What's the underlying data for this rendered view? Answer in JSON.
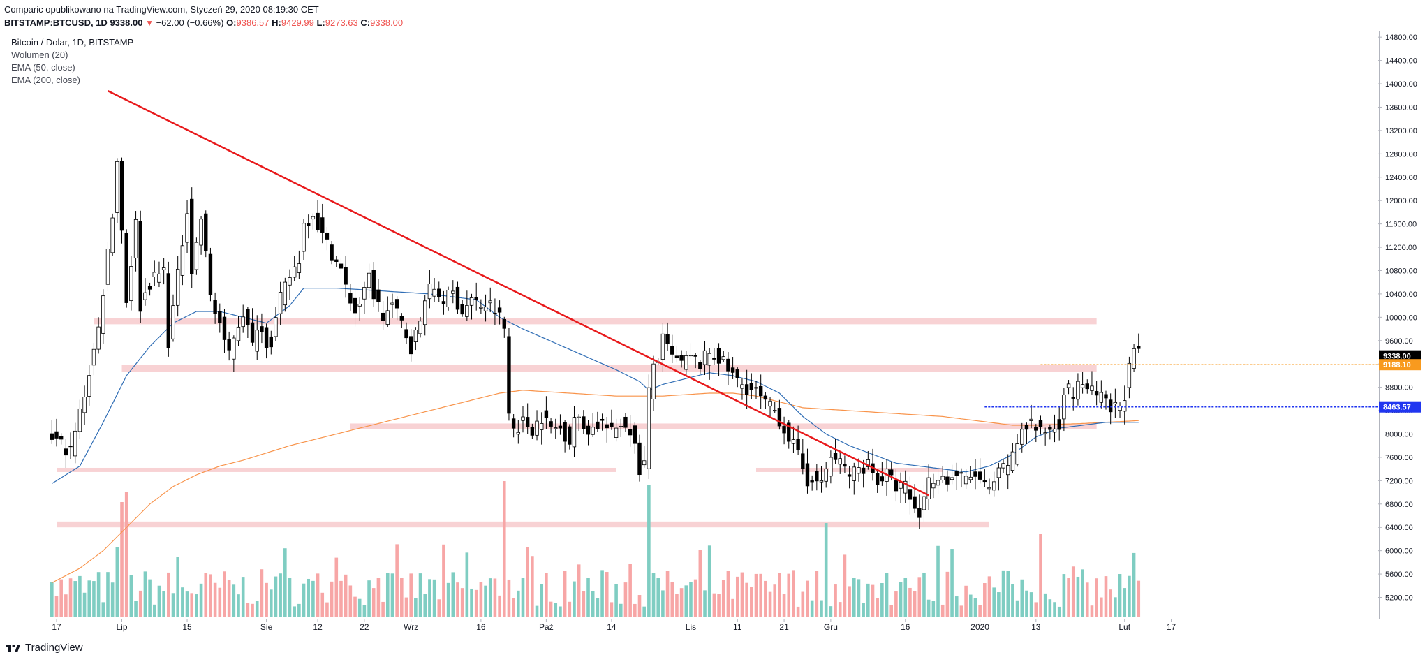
{
  "header": {
    "line1": "Comparic opublikowano na TradingView.com, Styczeń 29, 2020 08:19:30 CET",
    "symbol": "BITSTAMP:BTCUSD, 1D",
    "last": "9338.00",
    "change": "−62.00 (−0.66%)",
    "o_label": "O:",
    "o": "9386.57",
    "h_label": "H:",
    "h": "9429.99",
    "l_label": "L:",
    "l": "9273.63",
    "c_label": "C:",
    "c": "9338.00"
  },
  "legend": {
    "title": "Bitcoin / Dolar, 1D, BITSTAMP",
    "volume": "Wolumen (20)",
    "ema50": "EMA (50, close)",
    "ema200": "EMA (200, close)"
  },
  "brand": "TradingView",
  "colors": {
    "up": "#ffffff",
    "down": "#000000",
    "wick": "#000000",
    "vol_up": "#7fcdc2",
    "vol_down": "#f7a6a6",
    "ema50": "#2f6db5",
    "ema200": "#f8934a",
    "trendline": "#e8191b",
    "zone": "#f5c3c5",
    "price_last_bg": "#000000",
    "price_orange_bg": "#f89a1e",
    "price_blue_bg": "#2036f0"
  },
  "chart_data": {
    "type": "candlestick",
    "symbol": "BITSTAMP:BTCUSD",
    "interval": "1D",
    "y_ticks": [
      5200,
      5600,
      6000,
      6400,
      6800,
      7200,
      7600,
      8000,
      8400,
      8800,
      9200,
      9600,
      10000,
      10400,
      10800,
      11200,
      11600,
      12000,
      12400,
      12800,
      13200,
      13600,
      14000,
      14400,
      14800
    ],
    "y_tick_labels": [
      "5200.00",
      "5600.00",
      "6000.00",
      "6400.00",
      "6800.00",
      "7200.00",
      "7600.00",
      "8000.00",
      "8400.00",
      "8800.00",
      "9200.00",
      "9600.00",
      "10000.00",
      "10400.00",
      "10800.00",
      "11200.00",
      "11600.00",
      "12000.00",
      "12400.00",
      "12800.00",
      "13200.00",
      "13600.00",
      "14000.00",
      "14400.00",
      "14800.00"
    ],
    "x_ticks": [
      {
        "label": "17",
        "day": 0
      },
      {
        "label": "Lip",
        "day": 14
      },
      {
        "label": "15",
        "day": 28
      },
      {
        "label": "Sie",
        "day": 45
      },
      {
        "label": "12",
        "day": 56
      },
      {
        "label": "22",
        "day": 66
      },
      {
        "label": "Wrz",
        "day": 76
      },
      {
        "label": "16",
        "day": 91
      },
      {
        "label": "Paź",
        "day": 105
      },
      {
        "label": "14",
        "day": 119
      },
      {
        "label": "Lis",
        "day": 136
      },
      {
        "label": "11",
        "day": 146
      },
      {
        "label": "21",
        "day": 156
      },
      {
        "label": "Gru",
        "day": 166
      },
      {
        "label": "16",
        "day": 182
      },
      {
        "label": "2020",
        "day": 198
      },
      {
        "label": "13",
        "day": 210
      },
      {
        "label": "Lut",
        "day": 229
      },
      {
        "label": "17",
        "day": 239
      }
    ],
    "price_labels": [
      {
        "value": "9338.00",
        "price": 9338,
        "bg": "#000000"
      },
      {
        "value": "9188.10",
        "price": 9188,
        "bg": "#f89a1e"
      },
      {
        "value": "8463.57",
        "price": 8464,
        "bg": "#2036f0"
      }
    ],
    "zones": [
      {
        "low": 9880,
        "high": 9980,
        "from_day": 8,
        "to_day": 223
      },
      {
        "low": 9060,
        "high": 9180,
        "from_day": 14,
        "to_day": 223
      },
      {
        "low": 8080,
        "high": 8180,
        "from_day": 63,
        "to_day": 223
      },
      {
        "low": 7350,
        "high": 7420,
        "from_day": 0,
        "to_day": 120
      },
      {
        "low": 7350,
        "high": 7420,
        "from_day": 150,
        "to_day": 190
      },
      {
        "low": 6400,
        "high": 6500,
        "from_day": 0,
        "to_day": 200
      }
    ],
    "trendline": {
      "from": {
        "day": 11,
        "price": 13880
      },
      "to": {
        "day": 187,
        "price": 6950
      }
    },
    "hlines": [
      {
        "price": 9188,
        "from_day": 211,
        "to_day": 239,
        "color": "#f89a1e"
      },
      {
        "price": 8464,
        "from_day": 199,
        "to_day": 239,
        "color": "#2036f0"
      }
    ],
    "ohlc_anchors": [
      [
        -1,
        7950
      ],
      [
        3,
        7700
      ],
      [
        6,
        8700
      ],
      [
        9,
        9800
      ],
      [
        12,
        11800
      ],
      [
        13,
        12700
      ],
      [
        15,
        10300
      ],
      [
        17,
        11600
      ],
      [
        18,
        10200
      ],
      [
        20,
        10600
      ],
      [
        23,
        10800
      ],
      [
        24,
        9600
      ],
      [
        26,
        10700
      ],
      [
        28,
        11900
      ],
      [
        29,
        10800
      ],
      [
        31,
        11700
      ],
      [
        33,
        10400
      ],
      [
        34,
        10100
      ],
      [
        35,
        9900
      ],
      [
        36,
        9500
      ],
      [
        37,
        9400
      ],
      [
        38,
        9700
      ],
      [
        40,
        10100
      ],
      [
        42,
        9500
      ],
      [
        43,
        9900
      ],
      [
        45,
        9600
      ],
      [
        46,
        9600
      ],
      [
        48,
        10300
      ],
      [
        50,
        10700
      ],
      [
        52,
        11000
      ],
      [
        53,
        11600
      ],
      [
        55,
        11800
      ],
      [
        57,
        11400
      ],
      [
        59,
        11100
      ],
      [
        61,
        10800
      ],
      [
        62,
        10500
      ],
      [
        64,
        10100
      ],
      [
        66,
        10400
      ],
      [
        67,
        10700
      ],
      [
        68,
        10400
      ],
      [
        70,
        10000
      ],
      [
        72,
        10200
      ],
      [
        74,
        9900
      ],
      [
        76,
        9500
      ],
      [
        78,
        9900
      ],
      [
        79,
        10400
      ],
      [
        81,
        10500
      ],
      [
        83,
        10300
      ],
      [
        85,
        10400
      ],
      [
        87,
        10100
      ],
      [
        89,
        10300
      ],
      [
        91,
        10200
      ],
      [
        93,
        10200
      ],
      [
        95,
        10000
      ],
      [
        96,
        9800
      ],
      [
        97,
        8350
      ],
      [
        98,
        8100
      ],
      [
        100,
        8200
      ],
      [
        102,
        8100
      ],
      [
        104,
        8300
      ],
      [
        106,
        8100
      ],
      [
        108,
        8100
      ],
      [
        110,
        7900
      ],
      [
        111,
        8300
      ],
      [
        113,
        8100
      ],
      [
        115,
        8100
      ],
      [
        117,
        8200
      ],
      [
        119,
        8000
      ],
      [
        121,
        8200
      ],
      [
        123,
        8100
      ],
      [
        125,
        7400
      ],
      [
        126,
        7500
      ],
      [
        127,
        8700
      ],
      [
        128,
        9200
      ],
      [
        129,
        9300
      ],
      [
        130,
        9600
      ],
      [
        132,
        9300
      ],
      [
        134,
        9200
      ],
      [
        136,
        9300
      ],
      [
        138,
        9200
      ],
      [
        140,
        9400
      ],
      [
        142,
        9300
      ],
      [
        144,
        9100
      ],
      [
        146,
        8900
      ],
      [
        148,
        8800
      ],
      [
        150,
        8700
      ],
      [
        152,
        8500
      ],
      [
        154,
        8400
      ],
      [
        156,
        8100
      ],
      [
        158,
        7800
      ],
      [
        160,
        7400
      ],
      [
        161,
        7200
      ],
      [
        162,
        7300
      ],
      [
        163,
        7100
      ],
      [
        164,
        7200
      ],
      [
        166,
        7600
      ],
      [
        168,
        7500
      ],
      [
        170,
        7300
      ],
      [
        172,
        7400
      ],
      [
        174,
        7500
      ],
      [
        176,
        7200
      ],
      [
        178,
        7300
      ],
      [
        180,
        7100
      ],
      [
        182,
        7100
      ],
      [
        184,
        6700
      ],
      [
        185,
        6600
      ],
      [
        186,
        7000
      ],
      [
        187,
        7200
      ],
      [
        189,
        7300
      ],
      [
        191,
        7200
      ],
      [
        193,
        7300
      ],
      [
        195,
        7200
      ],
      [
        197,
        7300
      ],
      [
        198,
        7200
      ],
      [
        200,
        7000
      ],
      [
        202,
        7300
      ],
      [
        203,
        7400
      ],
      [
        205,
        7600
      ],
      [
        207,
        8100
      ],
      [
        209,
        8200
      ],
      [
        211,
        8000
      ],
      [
        213,
        8100
      ],
      [
        215,
        8200
      ],
      [
        216,
        8800
      ],
      [
        218,
        8700
      ],
      [
        220,
        8900
      ],
      [
        222,
        8700
      ],
      [
        224,
        8600
      ],
      [
        226,
        8400
      ],
      [
        228,
        8500
      ],
      [
        229,
        8700
      ],
      [
        230,
        9100
      ],
      [
        231,
        9380
      ],
      [
        232,
        9338
      ]
    ],
    "ema50_anchors": [
      [
        -1,
        7150
      ],
      [
        5,
        7450
      ],
      [
        10,
        8200
      ],
      [
        15,
        9000
      ],
      [
        20,
        9500
      ],
      [
        25,
        9900
      ],
      [
        30,
        10100
      ],
      [
        35,
        10100
      ],
      [
        40,
        10000
      ],
      [
        45,
        9900
      ],
      [
        50,
        10200
      ],
      [
        53,
        10500
      ],
      [
        60,
        10500
      ],
      [
        70,
        10450
      ],
      [
        80,
        10400
      ],
      [
        90,
        10300
      ],
      [
        95,
        10000
      ],
      [
        100,
        9800
      ],
      [
        110,
        9450
      ],
      [
        120,
        9100
      ],
      [
        125,
        8900
      ],
      [
        127,
        8750
      ],
      [
        130,
        8850
      ],
      [
        135,
        8950
      ],
      [
        140,
        9050
      ],
      [
        145,
        9000
      ],
      [
        150,
        8900
      ],
      [
        155,
        8700
      ],
      [
        160,
        8300
      ],
      [
        165,
        8000
      ],
      [
        170,
        7800
      ],
      [
        175,
        7650
      ],
      [
        180,
        7500
      ],
      [
        185,
        7450
      ],
      [
        190,
        7400
      ],
      [
        195,
        7350
      ],
      [
        200,
        7450
      ],
      [
        205,
        7650
      ],
      [
        210,
        7950
      ],
      [
        215,
        8100
      ],
      [
        220,
        8150
      ],
      [
        225,
        8200
      ],
      [
        232,
        8200
      ]
    ],
    "ema200_anchors": [
      [
        -1,
        5450
      ],
      [
        5,
        5700
      ],
      [
        10,
        6000
      ],
      [
        15,
        6400
      ],
      [
        20,
        6800
      ],
      [
        25,
        7100
      ],
      [
        30,
        7300
      ],
      [
        35,
        7450
      ],
      [
        40,
        7550
      ],
      [
        50,
        7800
      ],
      [
        60,
        8000
      ],
      [
        70,
        8200
      ],
      [
        80,
        8400
      ],
      [
        90,
        8600
      ],
      [
        95,
        8700
      ],
      [
        100,
        8750
      ],
      [
        110,
        8700
      ],
      [
        120,
        8650
      ],
      [
        130,
        8650
      ],
      [
        140,
        8700
      ],
      [
        145,
        8700
      ],
      [
        150,
        8650
      ],
      [
        155,
        8550
      ],
      [
        160,
        8450
      ],
      [
        170,
        8400
      ],
      [
        180,
        8350
      ],
      [
        190,
        8300
      ],
      [
        195,
        8250
      ],
      [
        200,
        8200
      ],
      [
        205,
        8150
      ],
      [
        210,
        8150
      ],
      [
        220,
        8180
      ],
      [
        232,
        8230
      ]
    ],
    "volume_spikes": [
      [
        14,
        0.55
      ],
      [
        15,
        0.6
      ],
      [
        96,
        0.65
      ],
      [
        127,
        0.63
      ],
      [
        165,
        0.45
      ],
      [
        211,
        0.4
      ]
    ]
  }
}
